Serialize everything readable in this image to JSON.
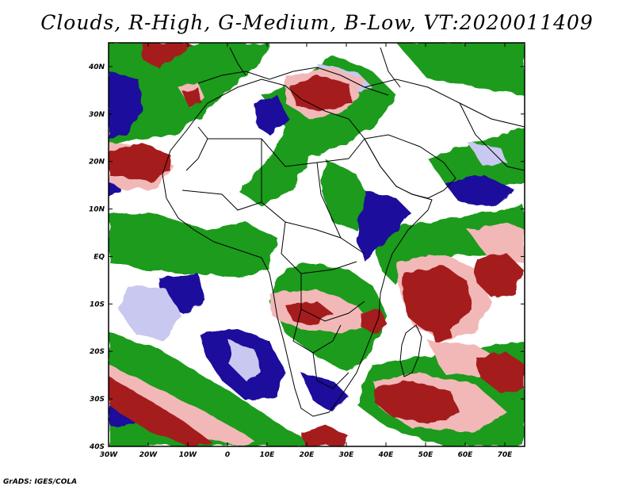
{
  "title": "Clouds, R-High, G-Medium, B-Low, VT:2020011409",
  "credit": "GrADS: IGES/COLA",
  "colors": {
    "high": "#a51c1c",
    "high_light": "#f2b8b8",
    "medium": "#1f9b1f",
    "low": "#1a0a9c",
    "low_light": "#c8c8f0",
    "background": "#ffffff",
    "boundary": "#000000"
  },
  "map": {
    "lon_range": [
      -30,
      75
    ],
    "lat_range": [
      -40,
      45
    ],
    "lon_labels": [
      "30W",
      "20W",
      "10W",
      "0",
      "10E",
      "20E",
      "30E",
      "40E",
      "50E",
      "60E",
      "70E"
    ],
    "lat_labels": [
      "40S",
      "30S",
      "20S",
      "10S",
      "EQ",
      "10N",
      "20N",
      "30N",
      "40N"
    ]
  }
}
